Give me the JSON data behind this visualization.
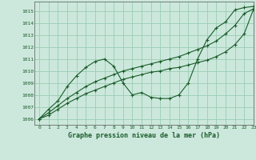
{
  "title": "Graphe pression niveau de la mer (hPa)",
  "background_color": "#cce8dc",
  "grid_color": "#99ccb3",
  "line_color": "#1a5c2a",
  "xlim": [
    -0.5,
    23
  ],
  "ylim": [
    1005.5,
    1015.8
  ],
  "xticks": [
    0,
    1,
    2,
    3,
    4,
    5,
    6,
    7,
    8,
    9,
    10,
    11,
    12,
    13,
    14,
    15,
    16,
    17,
    18,
    19,
    20,
    21,
    22,
    23
  ],
  "yticks": [
    1006,
    1007,
    1008,
    1009,
    1010,
    1011,
    1012,
    1013,
    1014,
    1015
  ],
  "series1_x": [
    0,
    1,
    2,
    3,
    4,
    5,
    6,
    7,
    8,
    9,
    10,
    11,
    12,
    13,
    14,
    15,
    16,
    17,
    18,
    19,
    20,
    21,
    22,
    23
  ],
  "series1_y": [
    1006.0,
    1006.8,
    1007.5,
    1008.7,
    1009.6,
    1010.3,
    1010.8,
    1011.0,
    1010.4,
    1009.0,
    1008.0,
    1008.2,
    1007.8,
    1007.7,
    1007.7,
    1008.0,
    1009.0,
    1011.0,
    1012.6,
    1013.6,
    1014.1,
    1015.1,
    1015.3,
    1015.4
  ],
  "series2_x": [
    0,
    1,
    2,
    3,
    4,
    5,
    6,
    7,
    8,
    9,
    10,
    11,
    12,
    13,
    14,
    15,
    16,
    17,
    18,
    19,
    20,
    21,
    22,
    23
  ],
  "series2_y": [
    1006.0,
    1006.5,
    1007.1,
    1007.7,
    1008.2,
    1008.7,
    1009.1,
    1009.4,
    1009.7,
    1010.0,
    1010.2,
    1010.4,
    1010.6,
    1010.8,
    1011.0,
    1011.2,
    1011.5,
    1011.8,
    1012.1,
    1012.5,
    1013.1,
    1013.8,
    1014.8,
    1015.2
  ],
  "series3_x": [
    0,
    1,
    2,
    3,
    4,
    5,
    6,
    7,
    8,
    9,
    10,
    11,
    12,
    13,
    14,
    15,
    16,
    17,
    18,
    19,
    20,
    21,
    22,
    23
  ],
  "series3_y": [
    1006.0,
    1006.3,
    1006.8,
    1007.3,
    1007.7,
    1008.1,
    1008.4,
    1008.7,
    1009.0,
    1009.3,
    1009.5,
    1009.7,
    1009.9,
    1010.0,
    1010.2,
    1010.3,
    1010.5,
    1010.7,
    1010.9,
    1011.2,
    1011.6,
    1012.2,
    1013.1,
    1015.15
  ]
}
